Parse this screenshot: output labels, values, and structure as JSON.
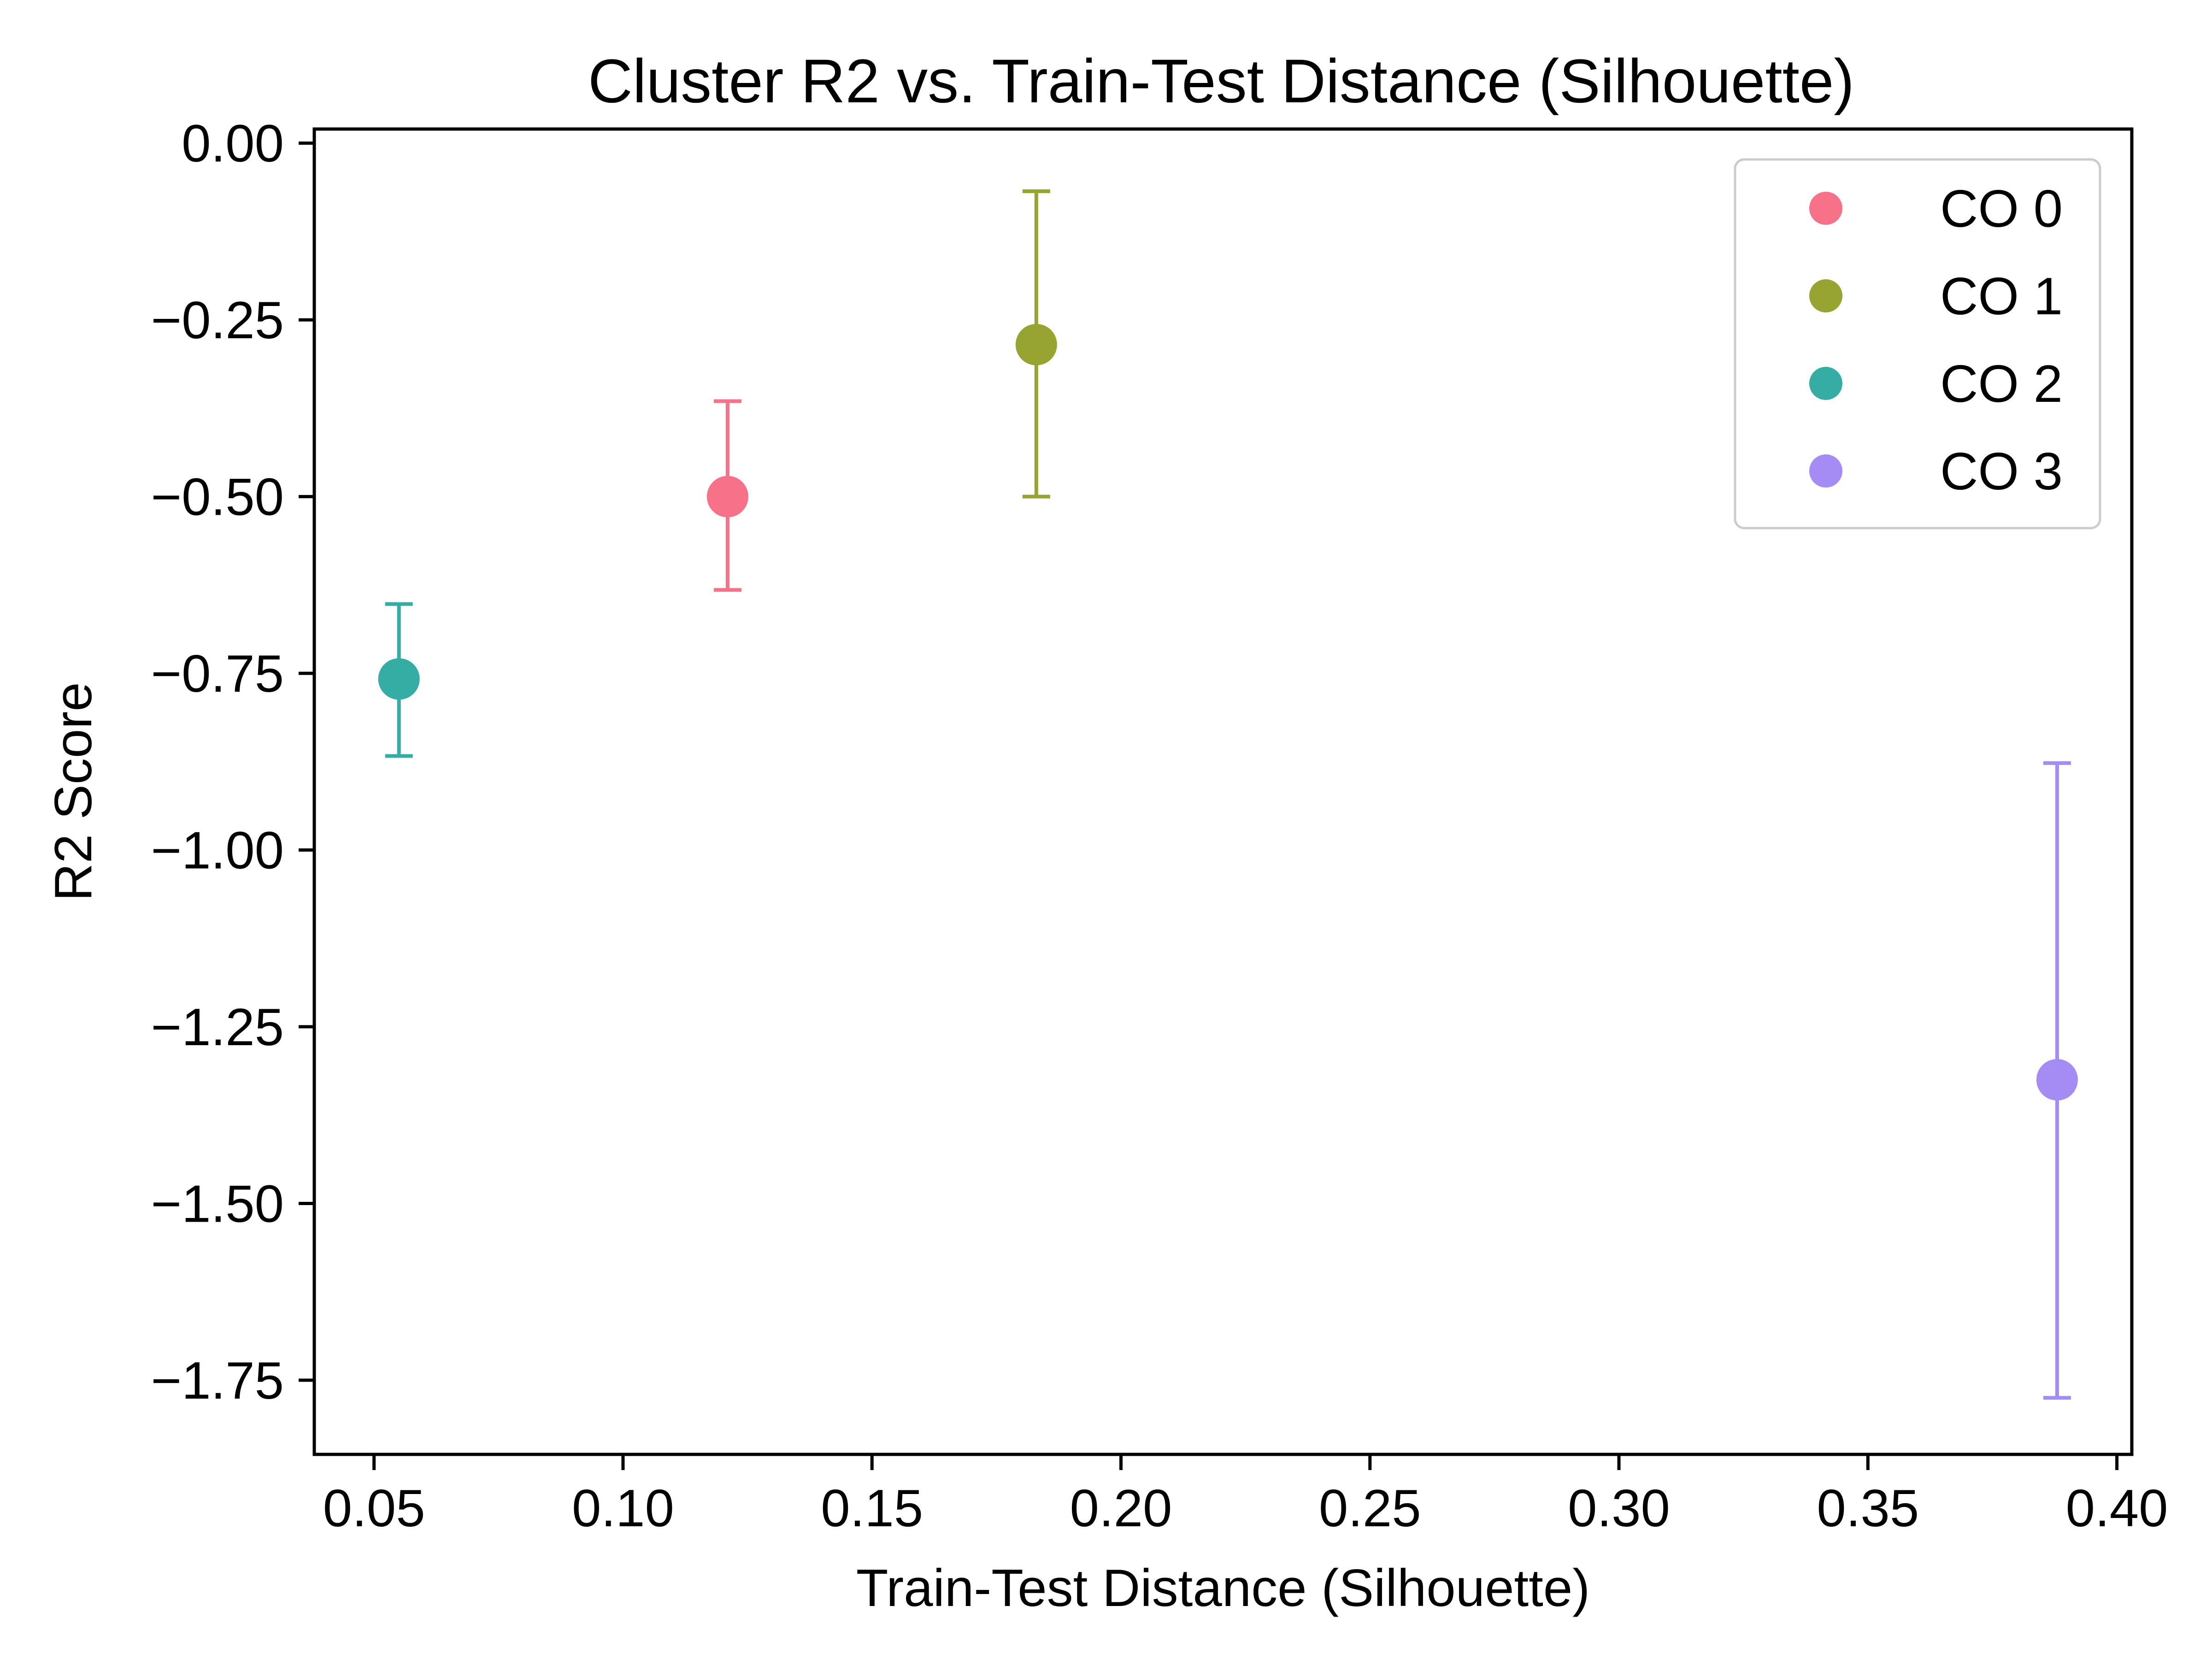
{
  "chart_data": {
    "type": "scatter",
    "title": "Cluster R2 vs. Train-Test Distance (Silhouette)",
    "xlabel": "Train-Test Distance (Silhouette)",
    "ylabel": "R2 Score",
    "xlim": [
      0.038,
      0.403
    ],
    "ylim": [
      -1.855,
      0.02
    ],
    "xticks": [
      0.05,
      0.1,
      0.15,
      0.2,
      0.25,
      0.3,
      0.35,
      0.4
    ],
    "xtick_labels": [
      "0.05",
      "0.10",
      "0.15",
      "0.20",
      "0.25",
      "0.30",
      "0.35",
      "0.40"
    ],
    "yticks": [
      0.0,
      -0.25,
      -0.5,
      -0.75,
      -1.0,
      -1.25,
      -1.5,
      -1.75
    ],
    "ytick_labels": [
      "0.00",
      "−0.25",
      "−0.50",
      "−0.75",
      "−1.00",
      "−1.25",
      "−1.50",
      "−1.75"
    ],
    "grid": false,
    "legend_position": "top-right",
    "series": [
      {
        "name": "CO 0",
        "color": "#f77189",
        "x": 0.121,
        "y": -0.5,
        "err_low": -0.632,
        "err_high": -0.365
      },
      {
        "name": "CO 1",
        "color": "#97a431",
        "x": 0.183,
        "y": -0.285,
        "err_low": -0.5,
        "err_high": -0.068
      },
      {
        "name": "CO 2",
        "color": "#36ada4",
        "x": 0.055,
        "y": -0.758,
        "err_low": -0.867,
        "err_high": -0.652
      },
      {
        "name": "CO 3",
        "color": "#a48cf4",
        "x": 0.388,
        "y": -1.325,
        "err_low": -1.775,
        "err_high": -0.877
      }
    ]
  }
}
